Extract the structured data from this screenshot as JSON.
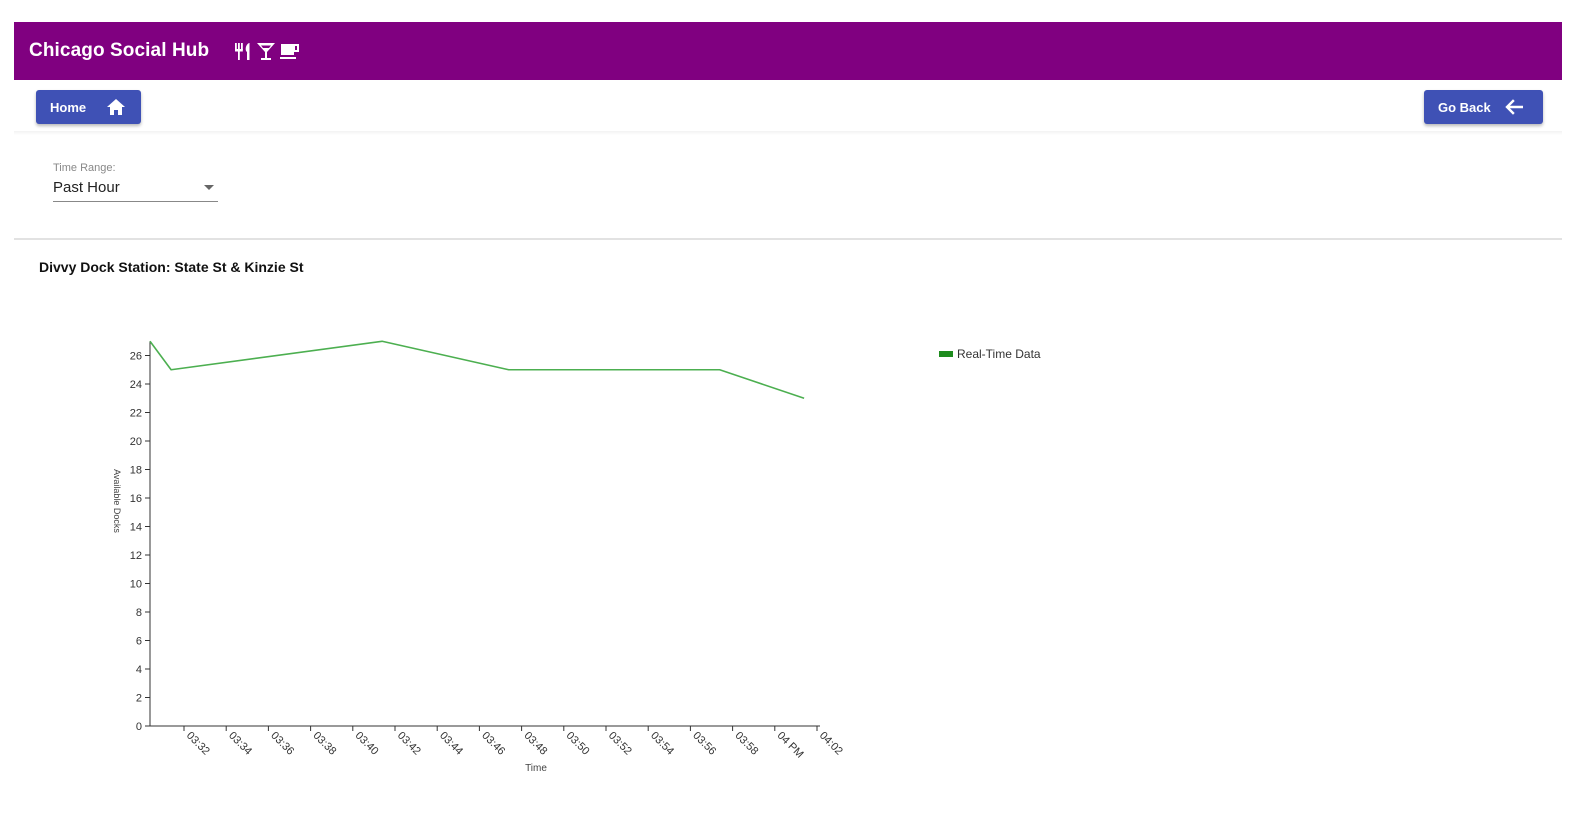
{
  "app": {
    "title": "Chicago Social Hub",
    "icons": [
      "utensils-icon",
      "cocktail-icon",
      "coffee-icon"
    ],
    "color": "#800080"
  },
  "nav": {
    "home_label": "Home",
    "home_icon": "home-icon",
    "back_label": "Go Back",
    "back_icon": "arrow-left-icon",
    "button_color": "#3f51b5"
  },
  "filter": {
    "label": "Time Range:",
    "value": "Past Hour"
  },
  "chart_data": {
    "type": "line",
    "title": "Divvy Dock Station: State St & Kinzie St",
    "xlabel": "Time",
    "ylabel": "Available Docks",
    "x_ticks": [
      "03:32",
      "03:34",
      "03:36",
      "03:38",
      "03:40",
      "03:42",
      "03:44",
      "03:46",
      "03:48",
      "03:50",
      "03:52",
      "03:54",
      "03:56",
      "03:58",
      "04 PM",
      "04:02"
    ],
    "x": [
      "03:31",
      "03:32",
      "03:42",
      "03:48",
      "03:58",
      "04:02"
    ],
    "series": [
      {
        "name": "Real-Time Data",
        "values": [
          27,
          25,
          27,
          25,
          25,
          23
        ],
        "color": "#4caf50"
      }
    ],
    "y_ticks": [
      0,
      2,
      4,
      6,
      8,
      10,
      12,
      14,
      16,
      18,
      20,
      22,
      24,
      26
    ],
    "ylim": [
      0,
      27
    ],
    "grid": false,
    "legend_position": "right"
  }
}
